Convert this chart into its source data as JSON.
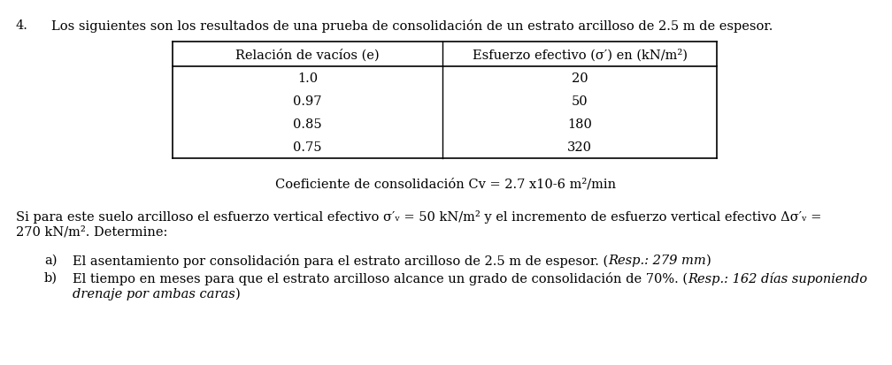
{
  "problem_number": "4.",
  "intro_text": "Los siguientes son los resultados de una prueba de consolidación de un estrato arcilloso de 2.5 m de espesor.",
  "table_header": [
    "Relación de vacíos (e)",
    "Esfuerzo efectivo (σ′) en (kN/m²)"
  ],
  "table_data": [
    [
      "1.0",
      "20"
    ],
    [
      "0.97",
      "50"
    ],
    [
      "0.85",
      "180"
    ],
    [
      "0.75",
      "320"
    ]
  ],
  "cv_line_normal": "Coeficiente de consolidación C",
  "cv_line_sub": "v",
  "cv_line_rest": " = 2.7 x10",
  "cv_line_sup": "-6",
  "cv_line_end": " m²/min",
  "si_para_line": "Si para este suelo arcilloso el esfuerzo vertical efectivo σ′ᵥ = 50 kN/m² y el incremento de esfuerzo vertical efectivo Δσ′ᵥ =",
  "si_para_line2": "270 kN/m². Determine:",
  "item_a_label": "a)",
  "item_a_normal": "El asentamiento por consolidación para el estrato arcilloso de 2.5 m de espesor. (",
  "item_a_italic": "Resp.: 279 mm",
  "item_a_end": ")",
  "item_b_label": "b)",
  "item_b_normal": "El tiempo en meses para que el estrato arcilloso alcance un grado de consolidación de 70%. (",
  "item_b_italic": "Resp.: 162 días suponiendo",
  "item_b_end": "",
  "item_b2_italic": "drenaje por ambas caras",
  "item_b2_end": ")",
  "bg_color": "#ffffff",
  "text_color": "#000000",
  "font_size": 10.5
}
